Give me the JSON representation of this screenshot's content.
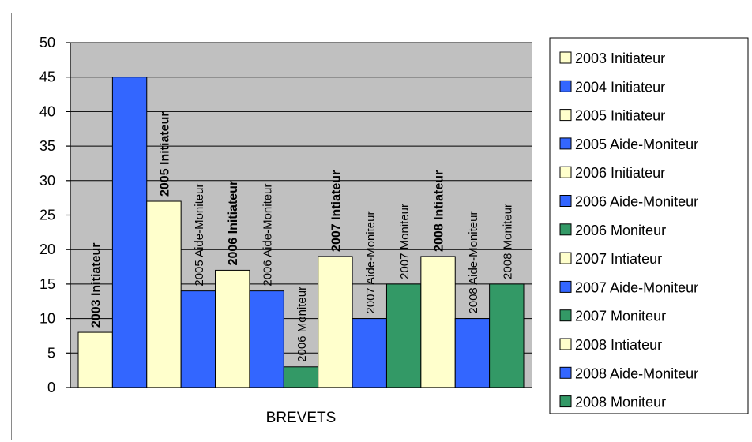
{
  "chart_data": {
    "type": "bar",
    "xlabel": "BREVETS",
    "ylim": [
      0,
      50
    ],
    "yticks": [
      0,
      5,
      10,
      15,
      20,
      25,
      30,
      35,
      40,
      45,
      50
    ],
    "grid": true,
    "legend_position": "right",
    "plot_background": "#c0c0c0",
    "colors": {
      "initiateur": "#ffffcc",
      "aide_moniteur": "#3366ff",
      "moniteur": "#339966"
    },
    "series": [
      {
        "name": "2003 Initiateur",
        "value": 8,
        "color_key": "initiateur",
        "label": "2003 Initiateur",
        "label_bold": true
      },
      {
        "name": "2004 Initiateur",
        "value": 45,
        "color_key": "aide_moniteur",
        "label": "",
        "label_bold": false
      },
      {
        "name": "2005 Initiateur",
        "value": 27,
        "color_key": "initiateur",
        "label": "2005 Initiateur",
        "label_bold": true
      },
      {
        "name": "2005 Aide-Moniteur",
        "value": 14,
        "color_key": "aide_moniteur",
        "label": "2005 Aide-Moniteur",
        "label_bold": false
      },
      {
        "name": "2006 Initiateur",
        "value": 17,
        "color_key": "initiateur",
        "label": "2006 Initiateur",
        "label_bold": true
      },
      {
        "name": "2006 Aide-Moniteur",
        "value": 14,
        "color_key": "aide_moniteur",
        "label": "2006 Aide-Moniteur",
        "label_bold": false
      },
      {
        "name": "2006 Moniteur",
        "value": 3,
        "color_key": "moniteur",
        "label": "2006 Moniteur",
        "label_bold": false
      },
      {
        "name": "2007 Intiateur",
        "value": 19,
        "color_key": "initiateur",
        "label": "2007 Intiateur",
        "label_bold": true
      },
      {
        "name": "2007 Aide-Moniteur",
        "value": 10,
        "color_key": "aide_moniteur",
        "label": "2007 Aide-Moniteur",
        "label_bold": false
      },
      {
        "name": "2007 Moniteur",
        "value": 15,
        "color_key": "moniteur",
        "label": "2007 Moniteur",
        "label_bold": false
      },
      {
        "name": "2008 Intiateur",
        "value": 19,
        "color_key": "initiateur",
        "label": "2008 Intiateur",
        "label_bold": true
      },
      {
        "name": "2008 Aide-Moniteur",
        "value": 10,
        "color_key": "aide_moniteur",
        "label": "2008 Aide-Moniteur",
        "label_bold": false
      },
      {
        "name": "2008 Moniteur",
        "value": 15,
        "color_key": "moniteur",
        "label": "2008 Moniteur",
        "label_bold": false
      }
    ]
  }
}
